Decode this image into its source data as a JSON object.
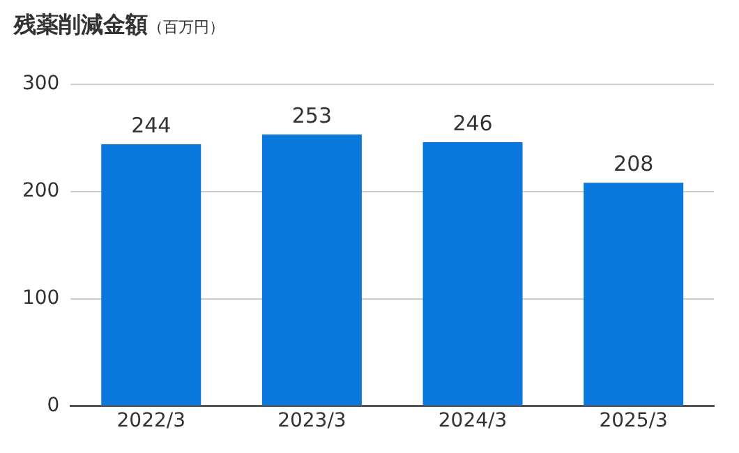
{
  "chart_data": {
    "type": "bar",
    "title": "残薬削減金額",
    "subtitle": "（百万円）",
    "categories": [
      "2022/3",
      "2023/3",
      "2024/3",
      "2025/3"
    ],
    "values": [
      244,
      253,
      246,
      208
    ],
    "color": "#0a78dc",
    "ylim": [
      0,
      300
    ],
    "yticks": [
      0,
      100,
      200,
      300
    ],
    "grid": "y",
    "data_labels": true
  }
}
